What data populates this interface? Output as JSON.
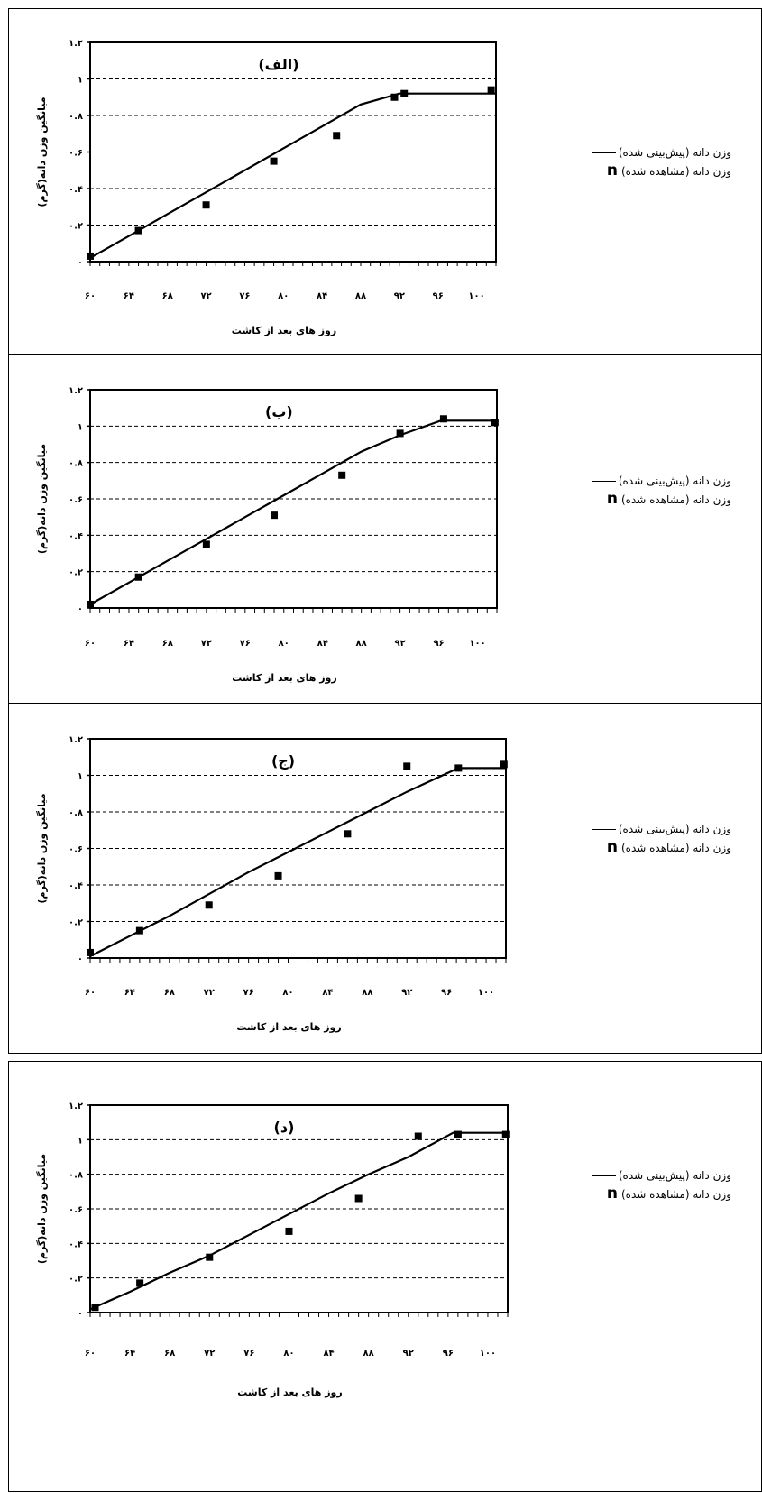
{
  "chart_data": [
    {
      "type": "line",
      "label": "(الف)",
      "xlabel": "روز های بعد از کاشت",
      "ylabel": "میانگین وزن دانه(گرم)",
      "x_ticks": [
        "۶۰",
        "۶۴",
        "۶۸",
        "۷۲",
        "۷۶",
        "۸۰",
        "۸۴",
        "۸۸",
        "۹۲",
        "۹۶",
        "۱۰۰"
      ],
      "y_ticks": [
        "۰",
        "۰.۲",
        "۰.۴",
        "۰.۶",
        "۰.۸",
        "۱",
        "۱.۲"
      ],
      "xlim": [
        60,
        102
      ],
      "ylim": [
        0,
        1.2
      ],
      "grid": true,
      "series": [
        {
          "name": "وزن دانه (پیش‌بینی شده)",
          "kind": "line",
          "x": [
            60,
            64,
            68,
            72,
            76,
            80,
            84,
            88,
            92,
            92.8,
            102
          ],
          "y": [
            0.02,
            0.14,
            0.26,
            0.38,
            0.5,
            0.62,
            0.74,
            0.86,
            0.92,
            0.92,
            0.92
          ]
        },
        {
          "name": "وزن دانه (مشاهده شده)",
          "kind": "marker",
          "x": [
            60,
            65,
            72,
            79,
            85.5,
            91.5,
            92.5,
            101.5
          ],
          "y": [
            0.03,
            0.17,
            0.31,
            0.55,
            0.69,
            0.9,
            0.92,
            0.94
          ]
        }
      ]
    },
    {
      "type": "line",
      "label": "(ب)",
      "xlabel": "روز های بعد از کاشت",
      "ylabel": "میانگین وزن دانه(گرم)",
      "x_ticks": [
        "۶۰",
        "۶۴",
        "۶۸",
        "۷۲",
        "۷۶",
        "۸۰",
        "۸۴",
        "۸۸",
        "۹۲",
        "۹۶",
        "۱۰۰"
      ],
      "y_ticks": [
        "۰",
        "۰.۲",
        "۰.۴",
        "۰.۶",
        "۰.۸",
        "۱",
        "۱.۲"
      ],
      "xlim": [
        60,
        102
      ],
      "ylim": [
        0,
        1.2
      ],
      "grid": true,
      "series": [
        {
          "name": "وزن دانه (پیش‌بینی شده)",
          "kind": "line",
          "x": [
            60,
            64,
            68,
            72,
            76,
            80,
            84,
            88,
            92,
            96.2,
            102
          ],
          "y": [
            0.02,
            0.14,
            0.26,
            0.38,
            0.5,
            0.62,
            0.74,
            0.86,
            0.95,
            1.03,
            1.03
          ]
        },
        {
          "name": "وزن دانه (مشاهده شده)",
          "kind": "marker",
          "x": [
            60,
            65,
            72,
            79,
            86,
            92,
            96.5,
            101.8
          ],
          "y": [
            0.02,
            0.17,
            0.35,
            0.51,
            0.73,
            0.96,
            1.04,
            1.02
          ]
        }
      ]
    },
    {
      "type": "line",
      "label": "(ج)",
      "xlabel": "روز های بعد از کاشت",
      "ylabel": "میانگین وزن دانه(گرم)",
      "x_ticks": [
        "۶۰",
        "۶۴",
        "۶۸",
        "۷۲",
        "۷۶",
        "۸۰",
        "۸۴",
        "۸۸",
        "۹۲",
        "۹۶",
        "۱۰۰"
      ],
      "y_ticks": [
        "۰",
        "۰.۲",
        "۰.۴",
        "۰.۶",
        "۰.۸",
        "۱",
        "۱.۲"
      ],
      "xlim": [
        60,
        102
      ],
      "ylim": [
        0,
        1.2
      ],
      "grid": true,
      "series": [
        {
          "name": "وزن دانه (پیش‌بینی شده)",
          "kind": "line",
          "x": [
            60,
            64,
            68,
            72,
            76,
            80,
            84,
            88,
            92,
            97.2,
            102
          ],
          "y": [
            0.01,
            0.12,
            0.23,
            0.35,
            0.47,
            0.58,
            0.69,
            0.8,
            0.91,
            1.04,
            1.04
          ]
        },
        {
          "name": "وزن دانه (مشاهده شده)",
          "kind": "marker",
          "x": [
            60,
            65,
            72,
            79,
            86,
            92,
            97.2,
            101.8
          ],
          "y": [
            0.03,
            0.15,
            0.29,
            0.45,
            0.68,
            1.05,
            1.04,
            1.06
          ]
        }
      ]
    },
    {
      "type": "line",
      "label": "(د)",
      "xlabel": "روز های بعد از کاشت",
      "ylabel": "میانگین وزن دانه(گرم)",
      "x_ticks": [
        "۶۰",
        "۶۴",
        "۶۸",
        "۷۲",
        "۷۶",
        "۸۰",
        "۸۴",
        "۸۸",
        "۹۲",
        "۹۶",
        "۱۰۰"
      ],
      "y_ticks": [
        "۰",
        "۰.۲",
        "۰.۴",
        "۰.۶",
        "۰.۸",
        "۱",
        "۱.۲"
      ],
      "xlim": [
        60,
        102
      ],
      "ylim": [
        0,
        1.2
      ],
      "grid": true,
      "series": [
        {
          "name": "وزن دانه (پیش‌بینی شده)",
          "kind": "line",
          "x": [
            60,
            64,
            68,
            72,
            76,
            80,
            84,
            88,
            92,
            96.5,
            102
          ],
          "y": [
            0.02,
            0.12,
            0.23,
            0.33,
            0.45,
            0.57,
            0.69,
            0.8,
            0.9,
            1.04,
            1.04
          ]
        },
        {
          "name": "وزن دانه (مشاهده شده)",
          "kind": "marker",
          "x": [
            60.5,
            65,
            72,
            80,
            87,
            93,
            97,
            101.8
          ],
          "y": [
            0.03,
            0.17,
            0.32,
            0.47,
            0.66,
            1.02,
            1.03,
            1.03
          ]
        }
      ]
    }
  ],
  "legend": {
    "predicted_label": "وزن دانه (پیش‌بینی شده)",
    "observed_label": "وزن دانه (مشاهده شده)",
    "observed_glyph": "n"
  }
}
